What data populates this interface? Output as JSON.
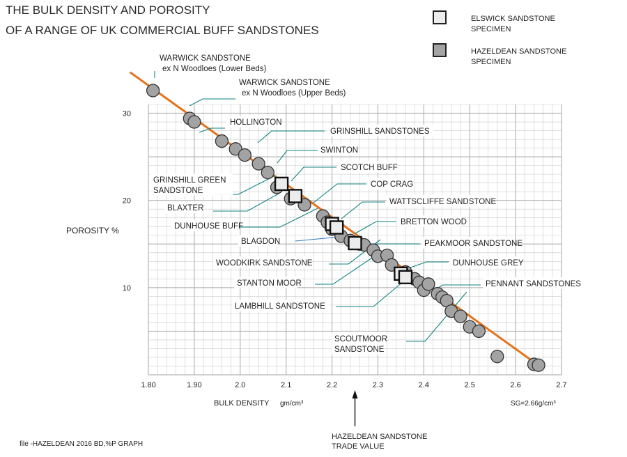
{
  "title_lines": [
    "THE BULK DENSITY AND POROSITY",
    "OF A RANGE OF UK COMMERCIAL BUFF SANDSTONES"
  ],
  "legend": [
    {
      "marker": "square",
      "lines": [
        "ELSWICK  SANDSTONE",
        "SPECIMEN"
      ]
    },
    {
      "marker": "circle",
      "lines": [
        "HAZELDEAN  SANDSTONE",
        "SPECIMEN"
      ]
    }
  ],
  "footer_file": "file -HAZELDEAN 2016  BD,%P GRAPH",
  "trade_value_lines": [
    "HAZELDEAN  SANDSTONE",
    "TRADE VALUE"
  ],
  "trade_value_x": 2.25,
  "colors": {
    "fit_line": "#e4731e",
    "grid": "#c9c9c9",
    "leader": "#0f8080",
    "blue_leader": "#2f7dbf",
    "circle_fill": "#a3a3a3",
    "square_fill": "#ececec",
    "marker_stroke": "#333333"
  },
  "chart_data": {
    "type": "scatter",
    "xlabel": "BULK DENSITY",
    "xlabel_unit": "gm/cm³",
    "ylabel": "POROSITY %",
    "sg_label": "SG=2.66g/cm³",
    "xlim": [
      1.8,
      2.7
    ],
    "ylim": [
      0,
      31
    ],
    "x_ticks": [
      "1.80",
      "1.90",
      "2.0",
      "2.1",
      "2.2",
      "2.3",
      "2.4",
      "2.5",
      "2.6",
      "2.7"
    ],
    "y_ticks": [
      {
        "value": 10,
        "label": "10"
      },
      {
        "value": 20,
        "label": "20"
      },
      {
        "value": 30,
        "label": "30"
      }
    ],
    "grid": true,
    "fit_line": [
      [
        1.76,
        34.7
      ],
      [
        2.66,
        0.7
      ]
    ],
    "circles": [
      [
        1.81,
        32.6
      ],
      [
        1.89,
        29.4
      ],
      [
        1.9,
        29.0
      ],
      [
        1.96,
        26.8
      ],
      [
        1.99,
        25.9
      ],
      [
        2.01,
        25.2
      ],
      [
        2.04,
        24.2
      ],
      [
        2.06,
        23.2
      ],
      [
        2.08,
        21.5
      ],
      [
        2.11,
        20.2
      ],
      [
        2.14,
        19.5
      ],
      [
        2.18,
        18.2
      ],
      [
        2.19,
        17.5
      ],
      [
        2.2,
        16.7
      ],
      [
        2.22,
        15.9
      ],
      [
        2.24,
        15.4
      ],
      [
        2.26,
        15.0
      ],
      [
        2.27,
        14.9
      ],
      [
        2.29,
        14.3
      ],
      [
        2.3,
        13.6
      ],
      [
        2.32,
        13.7
      ],
      [
        2.33,
        12.6
      ],
      [
        2.36,
        11.8
      ],
      [
        2.38,
        11.0
      ],
      [
        2.39,
        10.6
      ],
      [
        2.4,
        9.7
      ],
      [
        2.41,
        10.4
      ],
      [
        2.43,
        9.3
      ],
      [
        2.44,
        8.9
      ],
      [
        2.45,
        8.5
      ],
      [
        2.46,
        7.3
      ],
      [
        2.48,
        6.7
      ],
      [
        2.5,
        5.5
      ],
      [
        2.52,
        5.0
      ],
      [
        2.56,
        2.1
      ],
      [
        2.64,
        1.2
      ],
      [
        2.65,
        1.1
      ]
    ],
    "squares": [
      {
        "x": 2.09,
        "y": 21.9
      },
      {
        "x": 2.12,
        "y": 20.5
      },
      {
        "x": 2.2,
        "y": 17.3,
        "label": "2"
      },
      {
        "x": 2.21,
        "y": 16.9
      },
      {
        "x": 2.25,
        "y": 15.1
      },
      {
        "x": 2.35,
        "y": 11.6
      },
      {
        "x": 2.36,
        "y": 11.2
      }
    ],
    "annotations": [
      {
        "lines": [
          "WARWICK  SANDSTONE",
          "ex N Woodloes  (Lower Beds)"
        ]
      },
      {
        "lines": [
          "WARWICK  SANDSTONE",
          "ex N Woodloes  (Upper Beds)"
        ]
      },
      {
        "lines": [
          "HOLLINGTON"
        ]
      },
      {
        "lines": [
          "GRINSHILL  SANDSTONES"
        ]
      },
      {
        "lines": [
          "SWINTON"
        ]
      },
      {
        "lines": [
          "SCOTCH BUFF"
        ]
      },
      {
        "lines": [
          "GRINSHILL  GREEN",
          "SANDSTONE"
        ]
      },
      {
        "lines": [
          "COP CRAG"
        ]
      },
      {
        "lines": [
          "BLAXTER"
        ]
      },
      {
        "lines": [
          "WATTSCLIFFE SANDSTONE"
        ]
      },
      {
        "lines": [
          "DUNHOUSE BUFF"
        ]
      },
      {
        "lines": [
          "BRETTON WOOD"
        ]
      },
      {
        "lines": [
          "BLAGDON"
        ]
      },
      {
        "lines": [
          "PEAKMOOR SANDSTONE"
        ]
      },
      {
        "lines": [
          "WOODKIRK SANDSTONE"
        ]
      },
      {
        "lines": [
          "DUNHOUSE GREY"
        ]
      },
      {
        "lines": [
          "STANTON MOOR"
        ]
      },
      {
        "lines": [
          "PENNANT SANDSTONES"
        ]
      },
      {
        "lines": [
          "LAMBHILL  SANDSTONE"
        ]
      },
      {
        "lines": [
          "SCOUTMOOR",
          "SANDSTONE"
        ]
      }
    ]
  }
}
